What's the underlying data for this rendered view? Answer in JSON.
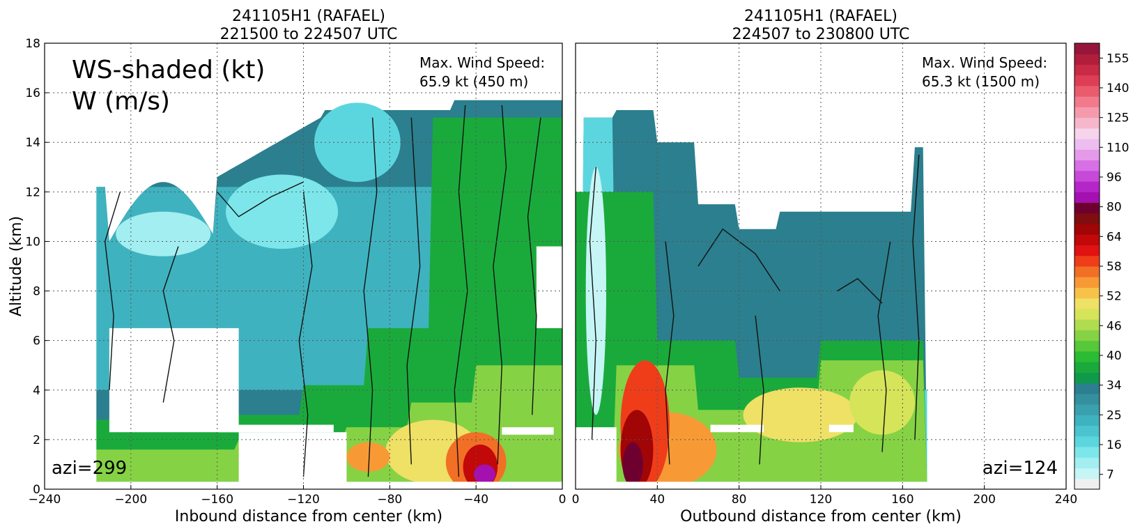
{
  "figure": {
    "ylabel": "Altitude (km)",
    "overlay_label_line1": "WS-shaded (kt)",
    "overlay_label_line2": "W (m/s)"
  },
  "chart_data": [
    {
      "type": "heatmap",
      "title_line1": "241105H1 (RAFAEL)",
      "title_line2": "221500 to 224507 UTC",
      "xlabel": "Inbound distance from center (km)",
      "ylabel": "Altitude (km)",
      "xlim": [
        -240,
        0
      ],
      "ylim": [
        0,
        18
      ],
      "xticks": [
        "−240",
        "−200",
        "−160",
        "−120",
        "−80",
        "−40",
        "0"
      ],
      "yticks": [
        "0",
        "2",
        "4",
        "6",
        "8",
        "10",
        "12",
        "14",
        "16",
        "18"
      ],
      "grid": true,
      "annotation_line1": "Max. Wind Speed:",
      "annotation_line2": "65.9 kt (450 m)",
      "azimuth_label": "azi=299"
    },
    {
      "type": "heatmap",
      "title_line1": "241105H1 (RAFAEL)",
      "title_line2": "224507 to 230800 UTC",
      "xlabel": "Outbound distance from center (km)",
      "xlim": [
        0,
        240
      ],
      "ylim": [
        0,
        18
      ],
      "xticks": [
        "0",
        "40",
        "80",
        "120",
        "160",
        "200",
        "240"
      ],
      "grid": true,
      "annotation_line1": "Max. Wind Speed:",
      "annotation_line2": "65.3 kt (1500 m)",
      "azimuth_label": "azi=124"
    }
  ],
  "colorbar": {
    "ticks": [
      "7",
      "16",
      "25",
      "34",
      "40",
      "46",
      "52",
      "58",
      "64",
      "80",
      "96",
      "110",
      "125",
      "140",
      "155"
    ],
    "colors": [
      "#f0f0f0",
      "#c6f5f5",
      "#a2eef0",
      "#7de6ea",
      "#5cd6de",
      "#4bc4cf",
      "#3fb2bf",
      "#3aa0ae",
      "#348f9e",
      "#2c7f8e",
      "#0f9a4a",
      "#1aaa3c",
      "#2cbb34",
      "#56c83a",
      "#86d245",
      "#b0dc50",
      "#d6e45a",
      "#efe066",
      "#f7c14a",
      "#f79a35",
      "#f26f26",
      "#ef3d1a",
      "#e11212",
      "#c20808",
      "#a10505",
      "#800d10",
      "#6e0030",
      "#a411b0",
      "#b526c9",
      "#c649d8",
      "#d670e4",
      "#e49ae9",
      "#eebdf0",
      "#f6d4ec",
      "#f6b7cc",
      "#f59aac",
      "#f27a8c",
      "#ea5b6e",
      "#de3e55",
      "#c92a45",
      "#b01e3c",
      "#95163a"
    ]
  }
}
